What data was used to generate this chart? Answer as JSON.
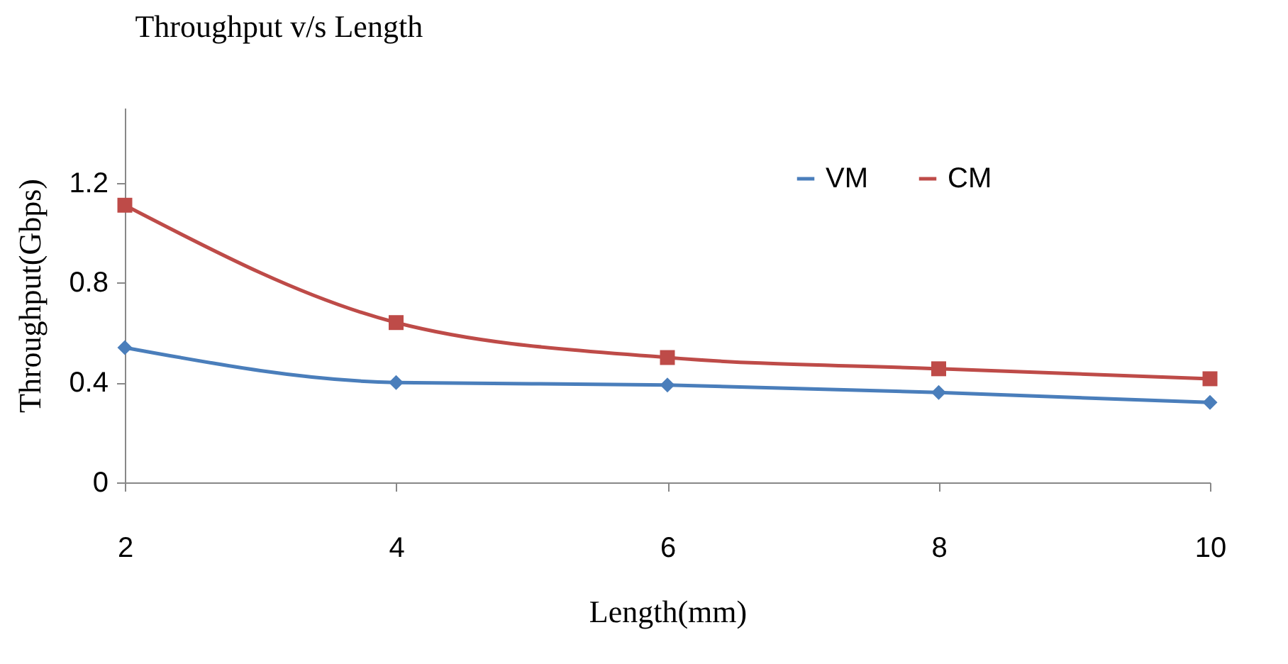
{
  "chart_data": {
    "type": "line",
    "title": "Throughput v/s Length",
    "xlabel": "Length(mm)",
    "ylabel": "Throughput(Gbps)",
    "x": [
      2,
      4,
      6,
      8,
      10
    ],
    "series": [
      {
        "name": "VM",
        "color": "#4a7ebb",
        "marker": "diamond",
        "values": [
          0.54,
          0.4,
          0.39,
          0.36,
          0.32
        ]
      },
      {
        "name": "CM",
        "color": "#be4b48",
        "marker": "square",
        "values": [
          1.11,
          0.64,
          0.5,
          0.455,
          0.415
        ]
      }
    ],
    "xlim": [
      2,
      10
    ],
    "xticks": [
      2,
      4,
      6,
      8,
      10
    ],
    "ylim": [
      0,
      1.5
    ],
    "yticks": [
      0,
      0.4,
      0.8,
      1.2
    ],
    "grid": false,
    "legend": "top right",
    "line_style": "solid"
  }
}
